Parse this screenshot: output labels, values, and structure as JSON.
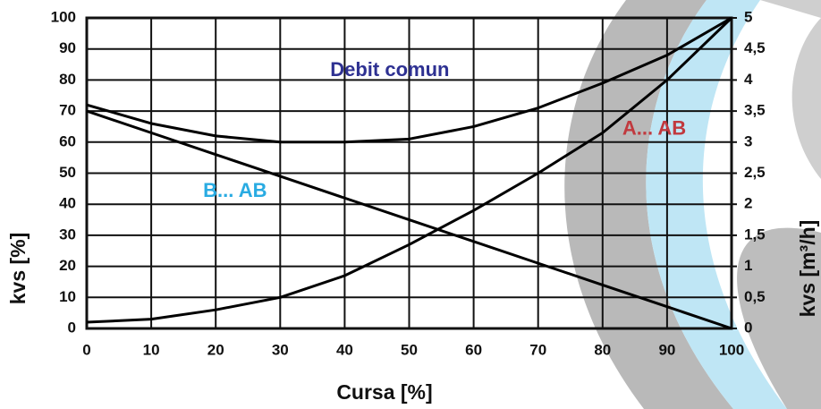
{
  "chart_data": {
    "type": "line",
    "x": [
      0,
      10,
      20,
      30,
      40,
      50,
      60,
      70,
      80,
      90,
      100
    ],
    "series": [
      {
        "name": "Debit comun",
        "color": "#000000",
        "label_color": "#2e3192",
        "values": [
          72,
          66,
          62,
          60,
          60,
          61,
          65,
          71,
          79,
          88,
          100
        ]
      },
      {
        "name": "A... AB",
        "color": "#000000",
        "label_color": "#c1393e",
        "values": [
          2,
          3,
          6,
          10,
          17,
          27,
          38,
          50,
          63,
          80,
          100
        ]
      },
      {
        "name": "B... AB",
        "color": "#000000",
        "label_color": "#29abe2",
        "values": [
          70,
          63,
          56,
          49,
          42,
          35,
          28,
          21,
          14,
          7,
          0
        ]
      }
    ],
    "xlabel": "Cursa [%]",
    "ylabel": "kvs [%]",
    "y2label": "kvs [m³/h]",
    "xlim": [
      0,
      100
    ],
    "xticks": [
      0,
      10,
      20,
      30,
      40,
      50,
      60,
      70,
      80,
      90,
      100
    ],
    "ylim": [
      0,
      100
    ],
    "yticks": [
      0,
      10,
      20,
      30,
      40,
      50,
      60,
      70,
      80,
      90,
      100
    ],
    "y2lim": [
      0,
      5
    ],
    "y2ticks": [
      0,
      {
        "value": 0.5,
        "label": "0,5"
      },
      1,
      {
        "value": 1.5,
        "label": "1,5"
      },
      2,
      {
        "value": 2.5,
        "label": "2,5"
      },
      3,
      {
        "value": 3.5,
        "label": "3,5"
      },
      4,
      {
        "value": 4.5,
        "label": "4,5"
      },
      5
    ],
    "grid": true
  }
}
